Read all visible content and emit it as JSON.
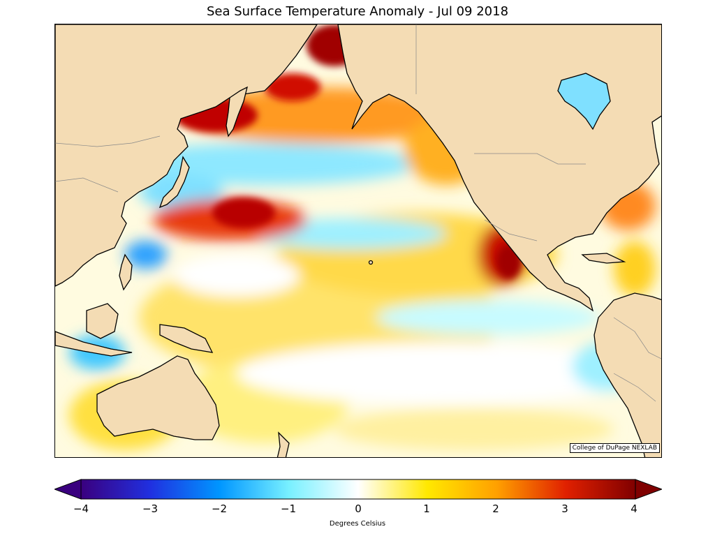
{
  "title": "Sea Surface Temperature Anomaly - Jul 09 2018",
  "credit": "College of DuPage NEXLAB",
  "colorbar": {
    "units_label": "Degrees Celsius",
    "ticks": [
      "−4",
      "−3",
      "−2",
      "−1",
      "0",
      "1",
      "2",
      "3",
      "4"
    ],
    "range": [
      -4,
      4
    ],
    "colors": {
      "min": "#3a007f",
      "neg3": "#2030e0",
      "neg2": "#0096ff",
      "neg1": "#78f0ff",
      "zero": "#ffffff",
      "pos1": "#ffe800",
      "pos2": "#ffa000",
      "pos3": "#e02000",
      "max": "#800000"
    }
  },
  "map": {
    "land_color": "#f4dcb4",
    "ocean_base": "#ffffff"
  }
}
